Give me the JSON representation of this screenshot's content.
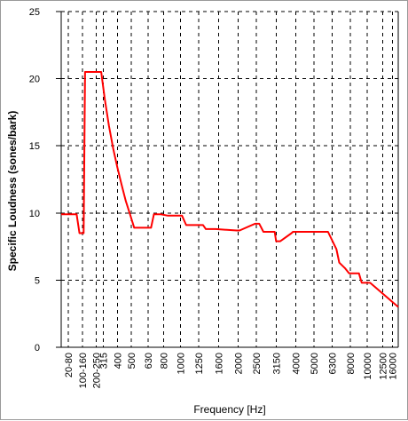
{
  "chart_data": {
    "type": "line",
    "title": "",
    "xlabel": "Frequency [Hz]",
    "ylabel": "Specific Loudness (sones/bark)",
    "ylim": [
      0,
      25
    ],
    "yticks": [
      0,
      5,
      10,
      15,
      20,
      25
    ],
    "bark_range": [
      0,
      24
    ],
    "grid": true,
    "x_tick_labels": [
      {
        "label": "20-80",
        "bark": 0.5
      },
      {
        "label": "100-160",
        "bark": 1.5
      },
      {
        "label": "200-250",
        "bark": 2.5
      },
      {
        "label": "315",
        "bark": 3.0
      },
      {
        "label": "400",
        "bark": 4.0
      },
      {
        "label": "500",
        "bark": 5.0
      },
      {
        "label": "630",
        "bark": 6.2
      },
      {
        "label": "800",
        "bark": 7.3
      },
      {
        "label": "1000",
        "bark": 8.5
      },
      {
        "label": "1250",
        "bark": 9.8
      },
      {
        "label": "1600",
        "bark": 11.2
      },
      {
        "label": "2000",
        "bark": 12.6
      },
      {
        "label": "2500",
        "bark": 13.9
      },
      {
        "label": "3150",
        "bark": 15.3
      },
      {
        "label": "4000",
        "bark": 16.7
      },
      {
        "label": "5000",
        "bark": 18.0
      },
      {
        "label": "6300",
        "bark": 19.3
      },
      {
        "label": "8000",
        "bark": 20.6
      },
      {
        "label": "10000",
        "bark": 21.8
      },
      {
        "label": "12500",
        "bark": 22.9
      },
      {
        "label": "16000",
        "bark": 23.6
      }
    ],
    "grid_lines_bark": [
      0.5,
      1.5,
      2.5,
      3.0,
      4.0,
      5.0,
      6.2,
      7.3,
      8.5,
      9.8,
      11.2,
      12.6,
      13.9,
      15.3,
      16.7,
      18.0,
      19.3,
      20.6,
      21.8,
      22.9,
      23.6
    ],
    "series": [
      {
        "color": "#ff0000",
        "x": [
          0,
          1.1,
          1.3,
          1.45,
          1.6,
          1.7,
          2.85,
          3.1,
          3.4,
          3.7,
          4.0,
          4.3,
          4.6,
          4.9,
          5.2,
          5.5,
          6.4,
          6.6,
          7.1,
          7.6,
          8.5,
          8.6,
          8.9,
          10.1,
          10.3,
          11.0,
          12.5,
          12.7,
          13.8,
          14.1,
          14.4,
          15.2,
          15.3,
          15.6,
          16.4,
          16.5,
          17.8,
          18.0,
          19.0,
          19.6,
          19.8,
          20.2,
          20.5,
          21.2,
          21.4,
          21.9,
          22.0,
          24.0
        ],
        "y": [
          9.9,
          9.9,
          8.5,
          8.5,
          8.5,
          20.5,
          20.5,
          18.5,
          16.5,
          14.8,
          13.4,
          12.1,
          10.9,
          9.9,
          8.9,
          8.9,
          8.9,
          9.9,
          9.9,
          9.8,
          9.8,
          9.8,
          9.1,
          9.1,
          8.8,
          8.8,
          8.7,
          8.7,
          9.2,
          9.2,
          8.6,
          8.6,
          7.9,
          7.9,
          8.5,
          8.6,
          8.6,
          8.6,
          8.6,
          7.3,
          6.3,
          5.9,
          5.5,
          5.5,
          4.8,
          4.8,
          4.8,
          3.0
        ]
      }
    ]
  }
}
